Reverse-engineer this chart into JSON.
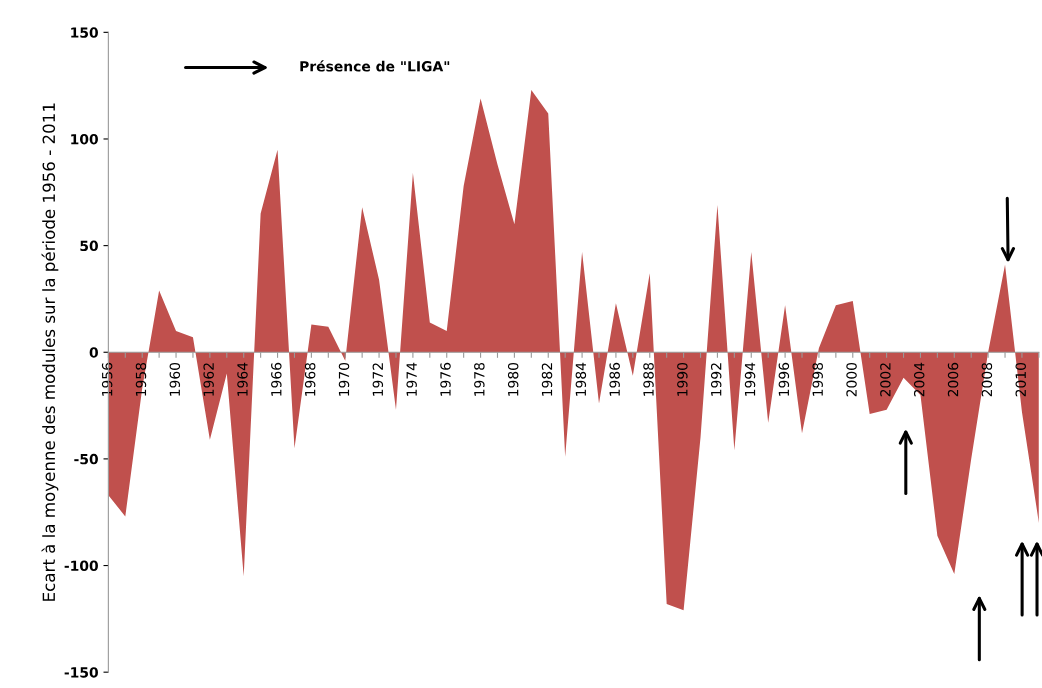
{
  "chart_data": {
    "type": "area",
    "ylabel": "Ecart à la moyenne des modules sur la période 1956 - 2011",
    "categories": [
      "1956",
      null,
      "1958",
      null,
      "1960",
      null,
      "1962",
      null,
      "1964",
      null,
      "1966",
      null,
      "1968",
      null,
      "1970",
      null,
      "1972",
      null,
      "1974",
      null,
      "1976",
      null,
      "1978",
      null,
      "1980",
      null,
      "1982",
      null,
      "1984",
      null,
      "1986",
      null,
      "1988",
      null,
      "1990",
      null,
      "1992",
      null,
      "1994",
      null,
      "1996",
      null,
      "1998",
      null,
      "2000",
      null,
      "2002",
      null,
      "2004",
      null,
      "2006",
      null,
      "2008",
      null,
      "2010",
      null
    ],
    "series": [
      {
        "color": "#c0504d",
        "values": [
          -67,
          -77,
          -17,
          29,
          10,
          7,
          -41,
          -10,
          -105,
          65,
          95,
          -45,
          13,
          12,
          -4,
          68,
          34,
          -27,
          84,
          14,
          10,
          78,
          119,
          88,
          60,
          123,
          112,
          -49,
          47,
          -24,
          23,
          -11,
          37,
          -118,
          -121,
          -40,
          69,
          -46,
          47,
          -33,
          22,
          -38,
          2,
          22,
          24,
          -29,
          -27,
          -12,
          -20,
          -86,
          -104,
          -50,
          0,
          41,
          -28,
          -80
        ]
      }
    ],
    "ylim": [
      -150,
      150
    ],
    "yticks": [
      -150,
      -100,
      -50,
      0,
      50,
      100,
      150
    ],
    "grid": false,
    "annotations": [
      "Présence de \"LIGA\""
    ]
  }
}
